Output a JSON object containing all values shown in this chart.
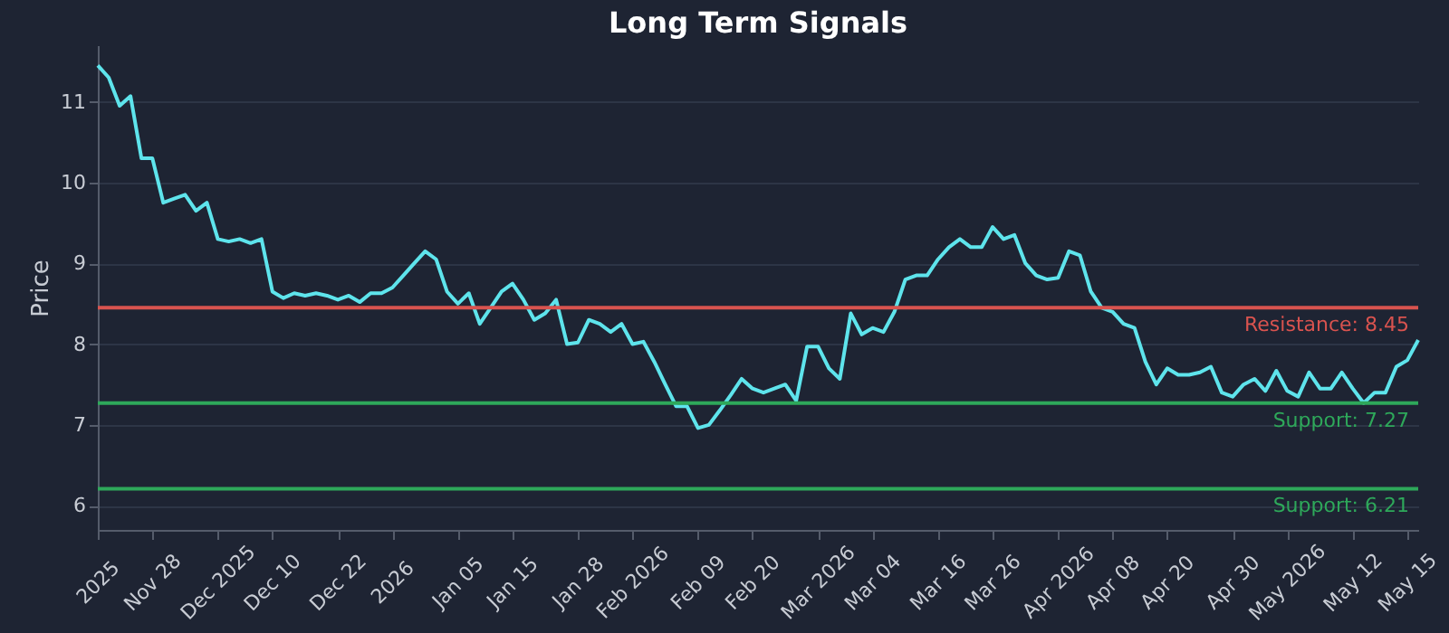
{
  "chart_data": {
    "type": "line",
    "title": "Long Term Signals",
    "ylabel": "Price",
    "categories": [
      "2025",
      null,
      null,
      null,
      null,
      "Nov 28",
      null,
      null,
      null,
      null,
      null,
      "Dec 2025",
      null,
      null,
      null,
      null,
      "Dec 10",
      null,
      null,
      null,
      null,
      null,
      "Dec 22",
      null,
      null,
      null,
      null,
      "2026",
      null,
      null,
      null,
      null,
      null,
      "Jan 05",
      null,
      null,
      null,
      null,
      "Jan 15",
      null,
      null,
      null,
      null,
      null,
      "Jan 28",
      null,
      null,
      null,
      null,
      "Feb 2026",
      null,
      null,
      null,
      null,
      null,
      "Feb 09",
      null,
      null,
      null,
      null,
      "Feb 20",
      null,
      null,
      null,
      null,
      null,
      "Mar 2026",
      null,
      null,
      null,
      null,
      "Mar 04",
      null,
      null,
      null,
      null,
      null,
      "Mar 16",
      null,
      null,
      null,
      null,
      "Mar 26",
      null,
      null,
      null,
      null,
      null,
      "Apr 2026",
      null,
      null,
      null,
      null,
      "Apr 08",
      null,
      null,
      null,
      null,
      "Apr 20",
      null,
      null,
      null,
      null,
      null,
      "Apr 30",
      null,
      null,
      null,
      null,
      "May 2026",
      null,
      null,
      null,
      null,
      null,
      "May 12",
      null,
      null,
      null,
      null,
      "May 15",
      null
    ],
    "series": [
      {
        "color": "#5ee4ec",
        "values": [
          11.45,
          11.3,
          10.95,
          11.07,
          10.3,
          10.3,
          9.75,
          9.8,
          9.85,
          9.65,
          9.75,
          9.3,
          9.27,
          9.3,
          9.25,
          9.3,
          8.65,
          8.57,
          8.63,
          8.6,
          8.63,
          8.6,
          8.55,
          8.6,
          8.52,
          8.63,
          8.63,
          8.7,
          8.85,
          9.0,
          9.15,
          9.05,
          8.65,
          8.5,
          8.63,
          8.25,
          8.45,
          8.65,
          8.75,
          8.55,
          8.3,
          8.38,
          8.55,
          8.0,
          8.02,
          8.3,
          8.25,
          8.15,
          8.25,
          8.0,
          8.03,
          7.78,
          7.5,
          7.23,
          7.23,
          6.96,
          7.0,
          7.18,
          7.37,
          7.57,
          7.45,
          7.4,
          7.45,
          7.5,
          7.3,
          7.97,
          7.97,
          7.7,
          7.57,
          8.38,
          8.12,
          8.2,
          8.15,
          8.4,
          8.8,
          8.85,
          8.85,
          9.05,
          9.2,
          9.3,
          9.2,
          9.2,
          9.45,
          9.3,
          9.35,
          9.0,
          8.85,
          8.8,
          8.82,
          9.15,
          9.1,
          8.65,
          8.45,
          8.4,
          8.25,
          8.2,
          7.78,
          7.5,
          7.7,
          7.62,
          7.62,
          7.65,
          7.72,
          7.4,
          7.35,
          7.5,
          7.57,
          7.42,
          7.67,
          7.42,
          7.35,
          7.65,
          7.45,
          7.45,
          7.65,
          7.45,
          7.27,
          7.4,
          7.4,
          7.72,
          7.8,
          8.05
        ]
      }
    ],
    "ylim": [
      5.7,
      11.7
    ],
    "yticks": [
      6,
      7,
      8,
      9,
      10,
      11
    ],
    "grid": "y",
    "marker": "none",
    "line_style": "solid",
    "ref_lines": [
      {
        "axis": "y",
        "value": 8.45,
        "label": "Resistance: 8.45",
        "color": "#d9534f"
      },
      {
        "axis": "y",
        "value": 7.27,
        "label": "Support: 7.27",
        "color": "#2ea85a"
      },
      {
        "axis": "y",
        "value": 6.21,
        "label": "Support: 6.21",
        "color": "#2ea85a"
      }
    ]
  }
}
